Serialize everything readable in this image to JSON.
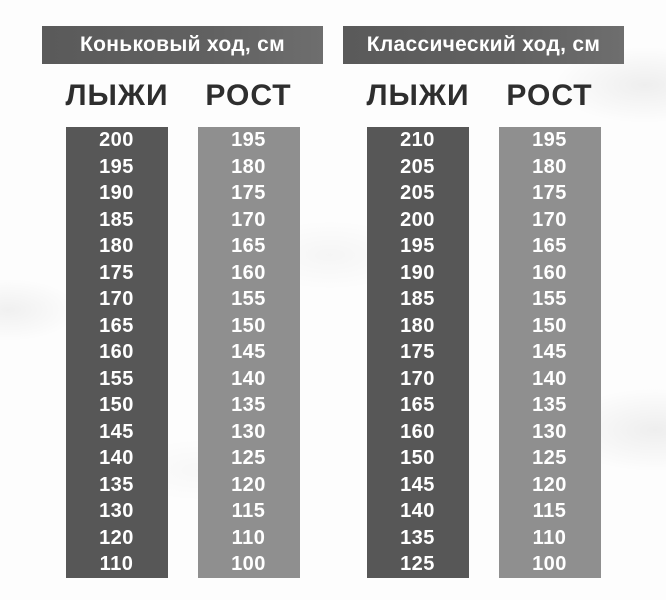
{
  "colors": {
    "header_bar": "#606060",
    "ski_column_dark": "#575757",
    "height_column_light": "#8f8f8f",
    "header_text": "#ffffff",
    "label_text": "#2e2e2e",
    "cell_text": "#ffffff",
    "background": "#fdfdfd"
  },
  "sections": [
    {
      "title": "Коньковый ход, см",
      "columns": [
        {
          "label": "ЛЫЖИ",
          "shade": "dark",
          "values": [
            "200",
            "195",
            "190",
            "185",
            "180",
            "175",
            "170",
            "165",
            "160",
            "155",
            "150",
            "145",
            "140",
            "135",
            "130",
            "120",
            "110"
          ]
        },
        {
          "label": "РОСТ",
          "shade": "light",
          "values": [
            "195",
            "180",
            "175",
            "170",
            "165",
            "160",
            "155",
            "150",
            "145",
            "140",
            "135",
            "130",
            "125",
            "120",
            "115",
            "110",
            "100"
          ]
        }
      ]
    },
    {
      "title": "Классический ход, см",
      "columns": [
        {
          "label": "ЛЫЖИ",
          "shade": "dark",
          "values": [
            "210",
            "205",
            "205",
            "200",
            "195",
            "190",
            "185",
            "180",
            "175",
            "170",
            "165",
            "160",
            "150",
            "145",
            "140",
            "135",
            "125"
          ]
        },
        {
          "label": "РОСТ",
          "shade": "light",
          "values": [
            "195",
            "180",
            "175",
            "170",
            "165",
            "160",
            "155",
            "150",
            "145",
            "140",
            "135",
            "130",
            "125",
            "120",
            "115",
            "110",
            "100"
          ]
        }
      ]
    }
  ],
  "chart_data": [
    {
      "type": "table",
      "title": "Коньковый ход, см",
      "columns": [
        "ЛЫЖИ",
        "РОСТ"
      ],
      "rows": [
        [
          200,
          195
        ],
        [
          195,
          180
        ],
        [
          190,
          175
        ],
        [
          185,
          170
        ],
        [
          180,
          165
        ],
        [
          175,
          160
        ],
        [
          170,
          155
        ],
        [
          165,
          150
        ],
        [
          160,
          145
        ],
        [
          155,
          140
        ],
        [
          150,
          135
        ],
        [
          145,
          130
        ],
        [
          140,
          125
        ],
        [
          135,
          120
        ],
        [
          130,
          115
        ],
        [
          120,
          110
        ],
        [
          110,
          100
        ]
      ]
    },
    {
      "type": "table",
      "title": "Классический ход, см",
      "columns": [
        "ЛЫЖИ",
        "РОСТ"
      ],
      "rows": [
        [
          210,
          195
        ],
        [
          205,
          180
        ],
        [
          205,
          175
        ],
        [
          200,
          170
        ],
        [
          195,
          165
        ],
        [
          190,
          160
        ],
        [
          185,
          155
        ],
        [
          180,
          150
        ],
        [
          175,
          145
        ],
        [
          170,
          140
        ],
        [
          165,
          135
        ],
        [
          160,
          130
        ],
        [
          150,
          125
        ],
        [
          145,
          120
        ],
        [
          140,
          115
        ],
        [
          135,
          110
        ],
        [
          125,
          100
        ]
      ]
    }
  ]
}
